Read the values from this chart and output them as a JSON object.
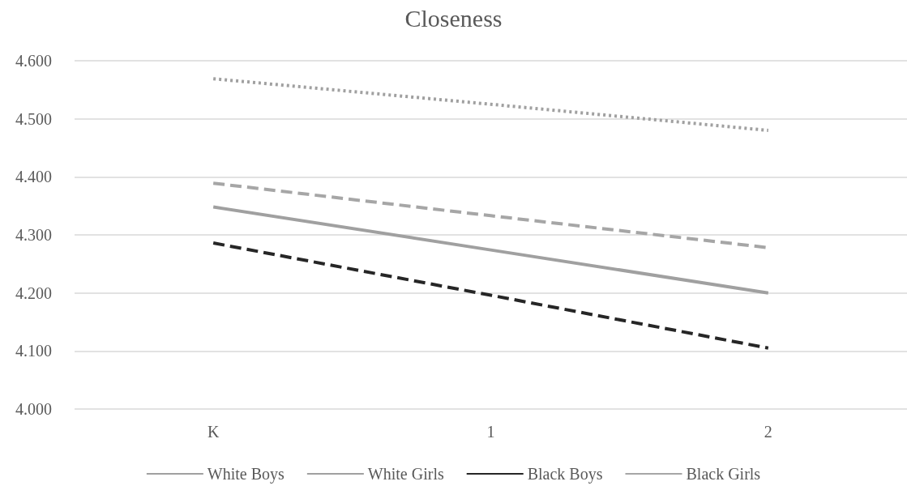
{
  "chart_data": {
    "type": "line",
    "title": "Closeness",
    "categories": [
      "K",
      "1",
      "2"
    ],
    "series": [
      {
        "name": "White Boys",
        "color": "#a0a0a0",
        "line_style": "solid",
        "values": [
          4.348,
          4.274,
          4.2
        ]
      },
      {
        "name": "White Girls",
        "color": "#a0a0a0",
        "line_style": "dotted",
        "values": [
          4.569,
          4.525,
          4.48
        ]
      },
      {
        "name": "Black Boys",
        "color": "#262626",
        "line_style": "dashed",
        "values": [
          4.286,
          4.196,
          4.105
        ]
      },
      {
        "name": "Black Girls",
        "color": "#a6a6a6",
        "line_style": "dashed",
        "values": [
          4.389,
          4.333,
          4.278
        ]
      }
    ],
    "ylim": [
      4.0,
      4.6
    ],
    "yticks": [
      {
        "value": 4.0,
        "label": "4.000"
      },
      {
        "value": 4.1,
        "label": "4.100"
      },
      {
        "value": 4.2,
        "label": "4.200"
      },
      {
        "value": 4.3,
        "label": "4.300"
      },
      {
        "value": 4.4,
        "label": "4.400"
      },
      {
        "value": 4.5,
        "label": "4.500"
      },
      {
        "value": 4.6,
        "label": "4.600"
      }
    ],
    "grid": "y",
    "legend": "bottom",
    "marker": "none"
  }
}
